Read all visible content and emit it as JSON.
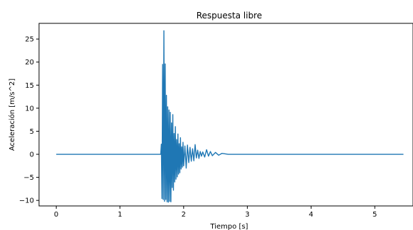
{
  "chart_data": {
    "type": "line",
    "title": "Respuesta libre",
    "xlabel": "Tiempo [s]",
    "ylabel": "Aceleración [m/s^2]",
    "xlim": [
      -0.27,
      5.6
    ],
    "ylim": [
      -11.2,
      28.4
    ],
    "xticks": [
      0,
      1,
      2,
      3,
      4,
      5
    ],
    "yticks": [
      -10,
      -5,
      0,
      5,
      10,
      15,
      20,
      25
    ],
    "xtick_labels": [
      "0",
      "1",
      "2",
      "3",
      "4",
      "5"
    ],
    "ytick_labels": [
      "−10",
      "−5",
      "0",
      "5",
      "10",
      "15",
      "20",
      "25"
    ],
    "grid": false,
    "line_color": "#1f77b4",
    "series": [
      {
        "x": [
          0.0,
          0.3,
          0.6,
          0.9,
          1.2,
          1.5,
          1.64,
          1.65,
          1.66,
          1.67,
          1.68,
          1.69,
          1.7,
          1.71,
          1.72,
          1.73,
          1.74,
          1.75,
          1.76,
          1.77,
          1.78,
          1.79,
          1.8,
          1.81,
          1.82,
          1.83,
          1.84,
          1.85,
          1.86,
          1.87,
          1.88,
          1.89,
          1.9,
          1.91,
          1.92,
          1.93,
          1.94,
          1.95,
          1.96,
          1.97,
          1.98,
          1.99,
          2.0,
          2.02,
          2.04,
          2.06,
          2.08,
          2.1,
          2.12,
          2.14,
          2.16,
          2.18,
          2.2,
          2.22,
          2.24,
          2.26,
          2.28,
          2.3,
          2.33,
          2.36,
          2.39,
          2.42,
          2.45,
          2.5,
          2.55,
          2.6,
          2.7,
          2.8,
          3.0,
          3.5,
          4.0,
          4.5,
          5.0,
          5.45
        ],
        "y": [
          0.0,
          0.0,
          0.0,
          0.0,
          0.0,
          0.0,
          0.0,
          2.2,
          -9.6,
          19.5,
          -9.8,
          26.8,
          -10.2,
          19.6,
          -9.8,
          12.8,
          -10.3,
          10.3,
          -10.4,
          9.6,
          -10.2,
          9.1,
          -10.3,
          6.8,
          -7.2,
          8.6,
          -7.8,
          4.5,
          -6.0,
          6.0,
          -5.4,
          3.2,
          -4.9,
          4.4,
          -4.3,
          2.3,
          -4.0,
          3.6,
          -3.2,
          1.6,
          -2.8,
          2.6,
          -2.5,
          1.8,
          -3.0,
          2.0,
          -1.8,
          1.5,
          -1.5,
          1.2,
          -1.4,
          2.1,
          -0.8,
          0.9,
          -0.9,
          0.6,
          -0.4,
          0.5,
          -0.6,
          1.0,
          -0.4,
          0.6,
          -0.3,
          0.4,
          -0.2,
          0.2,
          0.0,
          0.0,
          0.0,
          0.0,
          0.0,
          0.0,
          0.0,
          0.0
        ]
      }
    ]
  }
}
